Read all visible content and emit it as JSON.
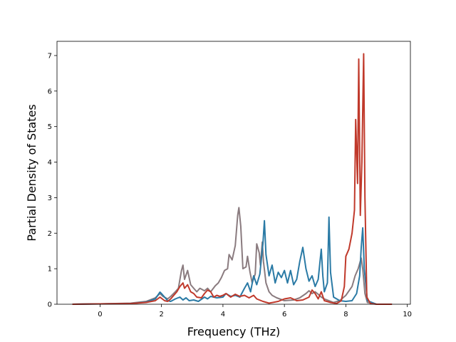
{
  "chart_data": {
    "type": "line",
    "title": "",
    "xlabel": "Frequency (THz)",
    "ylabel": "Partial Density of States",
    "xlim": [
      -1.4,
      10.1
    ],
    "ylim": [
      0,
      7.4
    ],
    "xticks": [
      0,
      2,
      4,
      6,
      8,
      10
    ],
    "yticks": [
      0,
      1,
      2,
      3,
      4,
      5,
      6,
      7
    ],
    "grid": false,
    "legend": "none",
    "series": [
      {
        "color": "#8a7b7f",
        "points": [
          [
            -0.9,
            0
          ],
          [
            0,
            0.01
          ],
          [
            1,
            0.03
          ],
          [
            1.5,
            0.08
          ],
          [
            1.8,
            0.18
          ],
          [
            1.95,
            0.3
          ],
          [
            2.05,
            0.22
          ],
          [
            2.2,
            0.15
          ],
          [
            2.3,
            0.22
          ],
          [
            2.45,
            0.35
          ],
          [
            2.55,
            0.45
          ],
          [
            2.65,
            0.95
          ],
          [
            2.7,
            1.1
          ],
          [
            2.75,
            0.7
          ],
          [
            2.85,
            0.95
          ],
          [
            2.95,
            0.55
          ],
          [
            3.05,
            0.45
          ],
          [
            3.15,
            0.35
          ],
          [
            3.25,
            0.45
          ],
          [
            3.4,
            0.38
          ],
          [
            3.5,
            0.45
          ],
          [
            3.6,
            0.35
          ],
          [
            3.75,
            0.52
          ],
          [
            3.85,
            0.6
          ],
          [
            3.95,
            0.75
          ],
          [
            4.05,
            0.95
          ],
          [
            4.15,
            1.0
          ],
          [
            4.2,
            1.4
          ],
          [
            4.3,
            1.25
          ],
          [
            4.4,
            1.65
          ],
          [
            4.48,
            2.5
          ],
          [
            4.52,
            2.72
          ],
          [
            4.58,
            2.2
          ],
          [
            4.65,
            1.0
          ],
          [
            4.75,
            1.05
          ],
          [
            4.8,
            1.35
          ],
          [
            4.88,
            0.9
          ],
          [
            4.95,
            0.6
          ],
          [
            5.05,
            0.85
          ],
          [
            5.1,
            1.7
          ],
          [
            5.18,
            1.45
          ],
          [
            5.22,
            1.1
          ],
          [
            5.28,
            1.75
          ],
          [
            5.32,
            1.2
          ],
          [
            5.4,
            0.6
          ],
          [
            5.5,
            0.35
          ],
          [
            5.6,
            0.25
          ],
          [
            5.75,
            0.18
          ],
          [
            6.0,
            0.1
          ],
          [
            6.3,
            0.12
          ],
          [
            6.5,
            0.18
          ],
          [
            6.7,
            0.3
          ],
          [
            6.8,
            0.38
          ],
          [
            6.9,
            0.3
          ],
          [
            7.0,
            0.35
          ],
          [
            7.1,
            0.28
          ],
          [
            7.2,
            0.2
          ],
          [
            7.3,
            0.15
          ],
          [
            7.45,
            0.1
          ],
          [
            7.6,
            0.05
          ],
          [
            7.8,
            0.1
          ],
          [
            8.0,
            0.25
          ],
          [
            8.2,
            0.5
          ],
          [
            8.3,
            0.8
          ],
          [
            8.4,
            1.0
          ],
          [
            8.5,
            1.3
          ],
          [
            8.55,
            1.0
          ],
          [
            8.62,
            0.3
          ],
          [
            8.7,
            0.05
          ],
          [
            9.0,
            0
          ],
          [
            9.5,
            0
          ]
        ]
      },
      {
        "color": "#2a7aa5",
        "points": [
          [
            -0.9,
            0
          ],
          [
            0,
            0.01
          ],
          [
            1,
            0.02
          ],
          [
            1.5,
            0.06
          ],
          [
            1.8,
            0.15
          ],
          [
            1.95,
            0.34
          ],
          [
            2.0,
            0.3
          ],
          [
            2.1,
            0.2
          ],
          [
            2.2,
            0.1
          ],
          [
            2.3,
            0.08
          ],
          [
            2.45,
            0.15
          ],
          [
            2.6,
            0.2
          ],
          [
            2.7,
            0.12
          ],
          [
            2.8,
            0.18
          ],
          [
            2.9,
            0.1
          ],
          [
            3.05,
            0.12
          ],
          [
            3.2,
            0.08
          ],
          [
            3.4,
            0.2
          ],
          [
            3.5,
            0.15
          ],
          [
            3.6,
            0.22
          ],
          [
            3.8,
            0.18
          ],
          [
            4.0,
            0.2
          ],
          [
            4.1,
            0.3
          ],
          [
            4.25,
            0.22
          ],
          [
            4.4,
            0.25
          ],
          [
            4.55,
            0.2
          ],
          [
            4.7,
            0.45
          ],
          [
            4.8,
            0.6
          ],
          [
            4.9,
            0.35
          ],
          [
            5.0,
            0.8
          ],
          [
            5.1,
            0.55
          ],
          [
            5.2,
            0.85
          ],
          [
            5.3,
            1.7
          ],
          [
            5.35,
            2.35
          ],
          [
            5.4,
            1.4
          ],
          [
            5.5,
            0.8
          ],
          [
            5.6,
            1.1
          ],
          [
            5.7,
            0.6
          ],
          [
            5.8,
            0.9
          ],
          [
            5.9,
            0.75
          ],
          [
            6.0,
            0.95
          ],
          [
            6.1,
            0.6
          ],
          [
            6.2,
            0.95
          ],
          [
            6.3,
            0.55
          ],
          [
            6.4,
            0.7
          ],
          [
            6.5,
            1.2
          ],
          [
            6.6,
            1.6
          ],
          [
            6.7,
            1.0
          ],
          [
            6.8,
            0.65
          ],
          [
            6.9,
            0.8
          ],
          [
            7.0,
            0.5
          ],
          [
            7.1,
            0.7
          ],
          [
            7.2,
            1.55
          ],
          [
            7.25,
            0.8
          ],
          [
            7.3,
            0.35
          ],
          [
            7.4,
            0.6
          ],
          [
            7.45,
            2.45
          ],
          [
            7.5,
            0.9
          ],
          [
            7.6,
            0.2
          ],
          [
            7.8,
            0.1
          ],
          [
            8.0,
            0.08
          ],
          [
            8.2,
            0.1
          ],
          [
            8.35,
            0.3
          ],
          [
            8.45,
            0.8
          ],
          [
            8.5,
            1.6
          ],
          [
            8.55,
            2.15
          ],
          [
            8.6,
            1.0
          ],
          [
            8.7,
            0.1
          ],
          [
            9.0,
            0
          ],
          [
            9.5,
            0
          ]
        ]
      },
      {
        "color": "#c0392b",
        "points": [
          [
            -0.9,
            0
          ],
          [
            0,
            0.01
          ],
          [
            1,
            0.02
          ],
          [
            1.5,
            0.05
          ],
          [
            1.8,
            0.1
          ],
          [
            1.95,
            0.2
          ],
          [
            2.1,
            0.1
          ],
          [
            2.2,
            0.08
          ],
          [
            2.3,
            0.15
          ],
          [
            2.4,
            0.25
          ],
          [
            2.5,
            0.35
          ],
          [
            2.6,
            0.5
          ],
          [
            2.7,
            0.6
          ],
          [
            2.75,
            0.45
          ],
          [
            2.85,
            0.55
          ],
          [
            2.95,
            0.35
          ],
          [
            3.05,
            0.3
          ],
          [
            3.15,
            0.2
          ],
          [
            3.3,
            0.18
          ],
          [
            3.4,
            0.3
          ],
          [
            3.5,
            0.4
          ],
          [
            3.6,
            0.35
          ],
          [
            3.7,
            0.2
          ],
          [
            3.8,
            0.25
          ],
          [
            3.9,
            0.22
          ],
          [
            4.0,
            0.25
          ],
          [
            4.1,
            0.3
          ],
          [
            4.25,
            0.2
          ],
          [
            4.4,
            0.28
          ],
          [
            4.55,
            0.22
          ],
          [
            4.7,
            0.25
          ],
          [
            4.85,
            0.18
          ],
          [
            5.0,
            0.25
          ],
          [
            5.1,
            0.15
          ],
          [
            5.3,
            0.08
          ],
          [
            5.5,
            0.03
          ],
          [
            5.8,
            0.08
          ],
          [
            6.0,
            0.15
          ],
          [
            6.2,
            0.18
          ],
          [
            6.4,
            0.1
          ],
          [
            6.6,
            0.12
          ],
          [
            6.8,
            0.2
          ],
          [
            6.9,
            0.4
          ],
          [
            7.0,
            0.3
          ],
          [
            7.1,
            0.15
          ],
          [
            7.2,
            0.35
          ],
          [
            7.3,
            0.1
          ],
          [
            7.5,
            0.05
          ],
          [
            7.7,
            0.02
          ],
          [
            7.85,
            0.1
          ],
          [
            7.95,
            0.5
          ],
          [
            8.0,
            1.35
          ],
          [
            8.1,
            1.55
          ],
          [
            8.2,
            2.0
          ],
          [
            8.28,
            2.65
          ],
          [
            8.32,
            5.2
          ],
          [
            8.38,
            3.4
          ],
          [
            8.42,
            6.9
          ],
          [
            8.47,
            2.5
          ],
          [
            8.52,
            4.0
          ],
          [
            8.58,
            7.05
          ],
          [
            8.62,
            3.0
          ],
          [
            8.68,
            0.2
          ],
          [
            8.8,
            0.02
          ],
          [
            9.0,
            0
          ],
          [
            9.5,
            0
          ]
        ]
      }
    ]
  }
}
